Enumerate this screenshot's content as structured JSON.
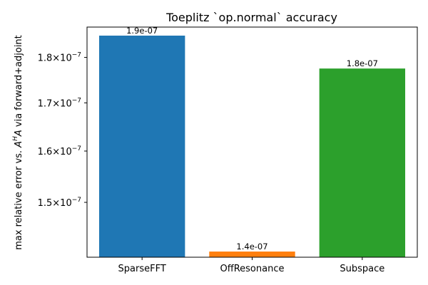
{
  "chart_data": {
    "type": "bar",
    "title": "Toeplitz `op.normal` accuracy",
    "xlabel": "",
    "ylabel": "max relative error  vs.  A^H A via forward+adjoint",
    "ylabel_parts": {
      "before": "max relative error  vs.  ",
      "a1": "A",
      "sup": "H",
      "a2": "A",
      "after": " via forward+adjoint"
    },
    "scale": "log",
    "ylim": [
      1.4e-07,
      1.87e-07
    ],
    "categories": [
      "SparseFFT",
      "OffResonance",
      "Subspace"
    ],
    "values": [
      1.85e-07,
      1.41e-07,
      1.775e-07
    ],
    "data_labels": [
      "1.9e-07",
      "1.4e-07",
      "1.8e-07"
    ],
    "colors": [
      "#1f77b4",
      "#ff7f0e",
      "#2ca02c"
    ],
    "yticks": [
      {
        "value": 1.5e-07,
        "mantissa": "1.5",
        "base": "10",
        "exp": "−7"
      },
      {
        "value": 1.6e-07,
        "mantissa": "1.6",
        "base": "10",
        "exp": "−7"
      },
      {
        "value": 1.7e-07,
        "mantissa": "1.7",
        "base": "10",
        "exp": "−7"
      },
      {
        "value": 1.8e-07,
        "mantissa": "1.8",
        "base": "10",
        "exp": "−7"
      }
    ],
    "grid": false,
    "legend": "none"
  }
}
